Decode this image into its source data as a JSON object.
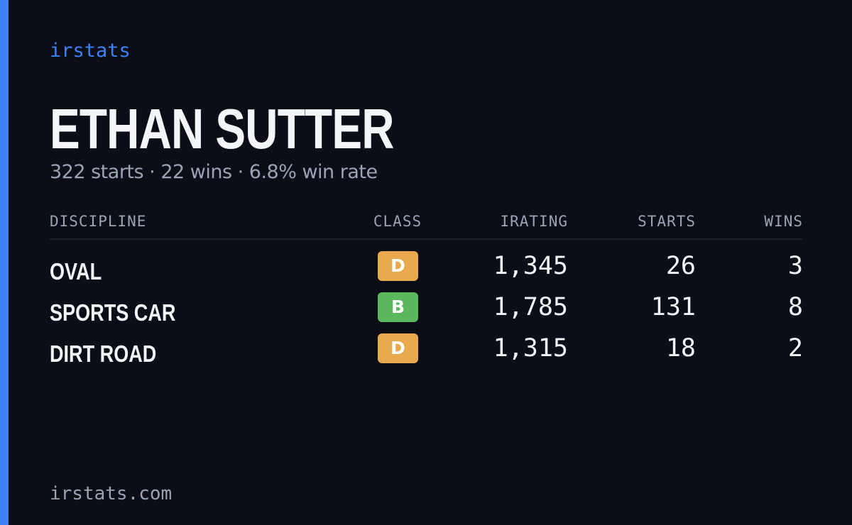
{
  "brand": "irstats",
  "driver": {
    "name": "ETHAN SUTTER",
    "summary": "322 starts · 22 wins · 6.8% win rate"
  },
  "table": {
    "headers": [
      "DISCIPLINE",
      "CLASS",
      "IRATING",
      "STARTS",
      "WINS"
    ],
    "rows": [
      {
        "discipline": "OVAL",
        "class": "D",
        "class_color": "#e9a94d",
        "irating": "1,345",
        "starts": "26",
        "wins": "3"
      },
      {
        "discipline": "SPORTS CAR",
        "class": "B",
        "class_color": "#5cb85c",
        "irating": "1,785",
        "starts": "131",
        "wins": "8"
      },
      {
        "discipline": "DIRT ROAD",
        "class": "D",
        "class_color": "#e9a94d",
        "irating": "1,315",
        "starts": "18",
        "wins": "2"
      }
    ]
  },
  "footer": "irstats.com"
}
